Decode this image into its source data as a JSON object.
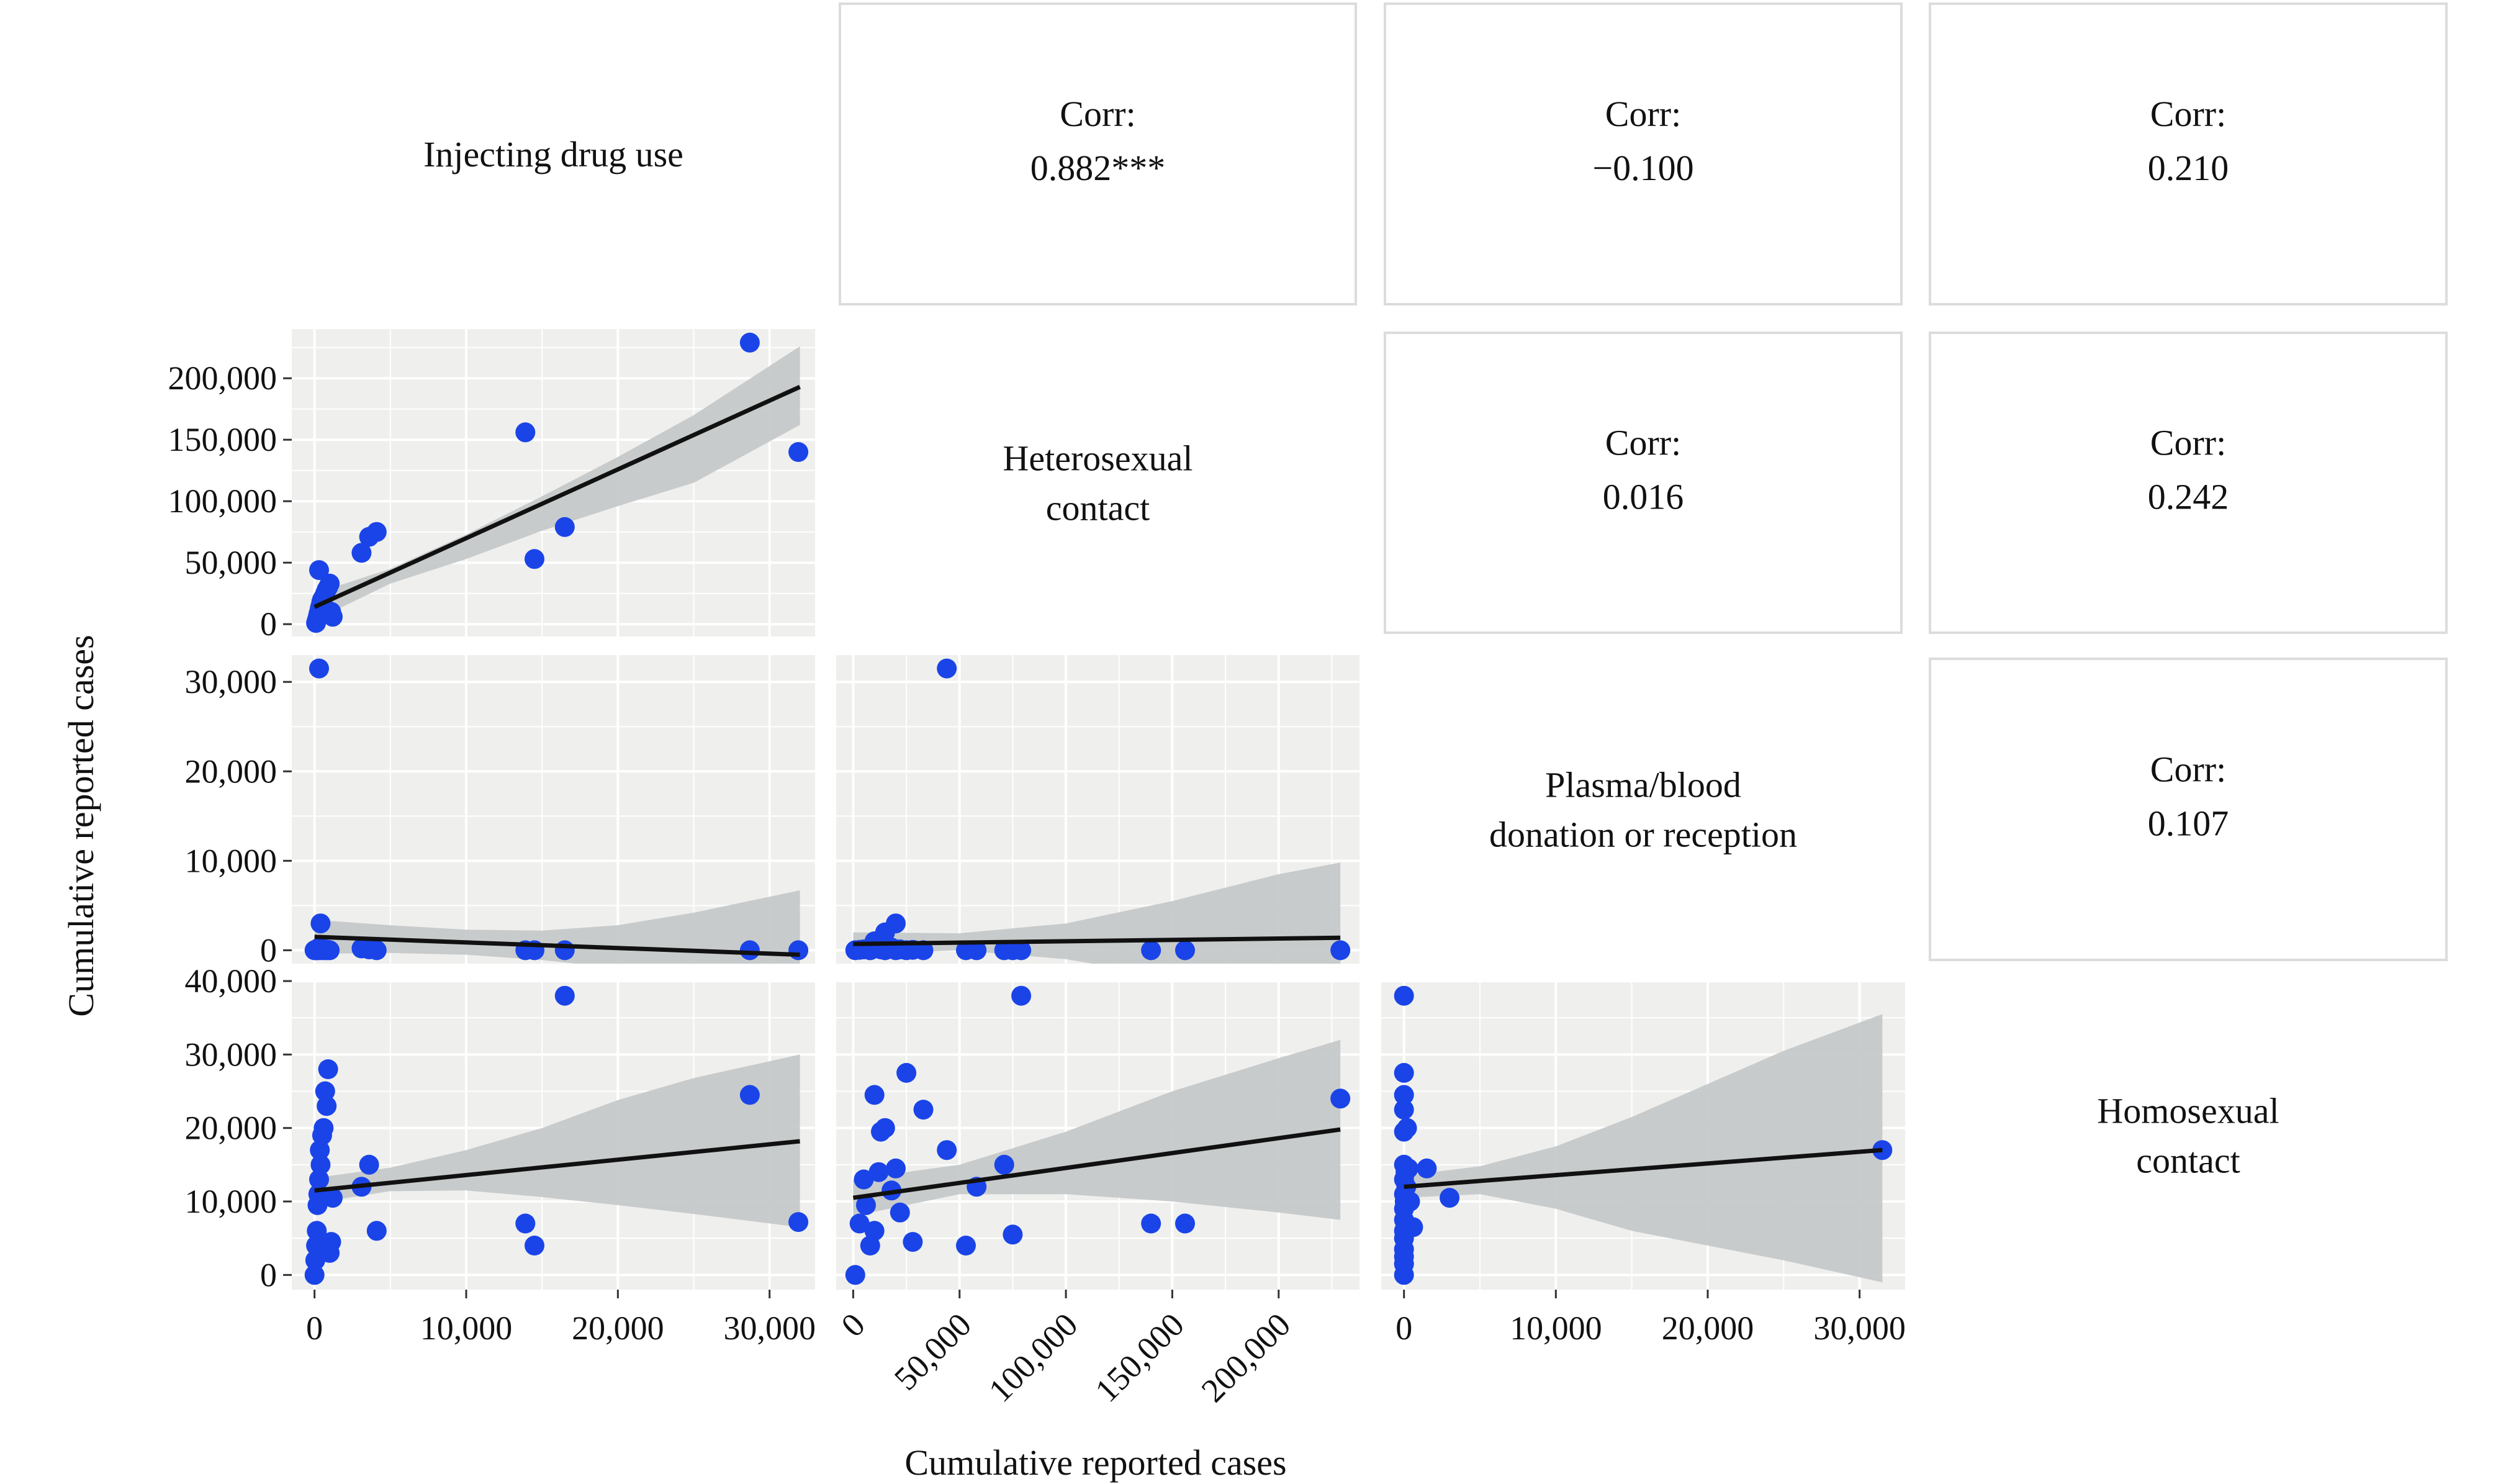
{
  "figure": {
    "xlabel": "Cumulative reported cases",
    "ylabel": "Cumulative reported cases"
  },
  "variables": [
    [
      "Injecting drug use"
    ],
    [
      "Heterosexual",
      "contact"
    ],
    [
      "Plasma/blood",
      "donation or reception"
    ],
    [
      "Homosexual",
      "contact"
    ]
  ],
  "correlations": [
    {
      "row": 0,
      "col": 1,
      "label": "Corr:",
      "value": "0.882***"
    },
    {
      "row": 0,
      "col": 2,
      "label": "Corr:",
      "value": "−0.100"
    },
    {
      "row": 0,
      "col": 3,
      "label": "Corr:",
      "value": "0.210"
    },
    {
      "row": 1,
      "col": 2,
      "label": "Corr:",
      "value": "0.016"
    },
    {
      "row": 1,
      "col": 3,
      "label": "Corr:",
      "value": "0.242"
    },
    {
      "row": 2,
      "col": 3,
      "label": "Corr:",
      "value": "0.107"
    }
  ],
  "x_axes": [
    {
      "col": 0,
      "ticks": [
        0,
        10000,
        20000,
        30000
      ],
      "labels": [
        "0",
        "10,000",
        "20,000",
        "30,000"
      ],
      "rotate": false
    },
    {
      "col": 1,
      "ticks": [
        0,
        50000,
        100000,
        150000,
        200000
      ],
      "labels": [
        "0",
        "50,000",
        "100,000",
        "150,000",
        "200,000"
      ],
      "rotate": true
    },
    {
      "col": 2,
      "ticks": [
        0,
        10000,
        20000,
        30000
      ],
      "labels": [
        "0",
        "10,000",
        "20,000",
        "30,000"
      ],
      "rotate": false
    }
  ],
  "y_axes": [
    {
      "row": 1,
      "ticks": [
        0,
        50000,
        100000,
        150000,
        200000
      ],
      "labels": [
        "0",
        "50,000",
        "100,000",
        "150,000",
        "200,000"
      ]
    },
    {
      "row": 2,
      "ticks": [
        0,
        10000,
        20000,
        30000
      ],
      "labels": [
        "0",
        "10,000",
        "20,000",
        "30,000"
      ]
    },
    {
      "row": 3,
      "ticks": [
        0,
        10000,
        20000,
        30000,
        40000
      ],
      "labels": [
        "0",
        "10,000",
        "20,000",
        "30,000",
        "40,000"
      ]
    }
  ],
  "colors": {
    "points": "#1a44e8",
    "fit_line": "#111111",
    "confidence_band": "#c3c6c6",
    "panel_background": "#efefed",
    "grid": "#ffffff",
    "corr_border": "#dcdcdc"
  },
  "chart_data": [
    {
      "type": "scatter",
      "row": 1,
      "col": 0,
      "xlim": [
        -1500,
        33000
      ],
      "ylim": [
        -10000,
        240000
      ],
      "x": [
        100,
        150,
        200,
        250,
        300,
        350,
        400,
        450,
        500,
        600,
        700,
        800,
        900,
        1000,
        1100,
        1200,
        300,
        3100,
        3600,
        4100,
        13900,
        14500,
        16500,
        28700,
        31900
      ],
      "y": [
        1000,
        3000,
        5000,
        8000,
        10000,
        13000,
        15000,
        18000,
        20000,
        22000,
        25000,
        28000,
        30000,
        33000,
        10000,
        6000,
        44000,
        58000,
        71000,
        75000,
        156000,
        53000,
        79000,
        229000,
        140000
      ],
      "fit": {
        "x": [
          0,
          32000
        ],
        "y": [
          14000,
          193000
        ]
      },
      "band": {
        "x": [
          0,
          5000,
          10000,
          15000,
          20000,
          25000,
          32000
        ],
        "lower": [
          3000,
          33000,
          53000,
          76000,
          96000,
          115000,
          162000
        ],
        "upper": [
          25000,
          45000,
          73000,
          104000,
          136000,
          170000,
          226000
        ]
      }
    },
    {
      "type": "scatter",
      "row": 2,
      "col": 0,
      "xlim": [
        -1500,
        33000
      ],
      "ylim": [
        -1500,
        33000
      ],
      "x": [
        0,
        50,
        100,
        150,
        200,
        250,
        300,
        350,
        400,
        500,
        600,
        700,
        800,
        900,
        1000,
        300,
        400,
        3100,
        3600,
        4100,
        13900,
        14500,
        16500,
        28700,
        31900
      ],
      "y": [
        0,
        50,
        0,
        100,
        0,
        200,
        300,
        0,
        100,
        50,
        0,
        100,
        0,
        50,
        0,
        31500,
        3000,
        200,
        100,
        0,
        0,
        0,
        0,
        0,
        0
      ],
      "fit": {
        "x": [
          0,
          32000
        ],
        "y": [
          1500,
          -500
        ]
      },
      "band": {
        "x": [
          0,
          5000,
          10000,
          15000,
          20000,
          25000,
          32000
        ],
        "lower": [
          -400,
          -300,
          -500,
          -1100,
          -2000,
          -3000,
          -4700
        ],
        "upper": [
          3400,
          2800,
          2300,
          2200,
          2800,
          4200,
          6700
        ]
      }
    },
    {
      "type": "scatter",
      "row": 2,
      "col": 1,
      "xlim": [
        -8000,
        238000
      ],
      "ylim": [
        -1500,
        33000
      ],
      "x": [
        1000,
        3000,
        5000,
        8000,
        10000,
        13000,
        15000,
        18000,
        20000,
        22000,
        25000,
        28000,
        33000,
        44000,
        53000,
        58000,
        71000,
        75000,
        79000,
        140000,
        156000,
        229000,
        20000,
        15000,
        10000
      ],
      "y": [
        0,
        50,
        100,
        0,
        200,
        100,
        0,
        300,
        0,
        100,
        0,
        50,
        0,
        31500,
        0,
        0,
        0,
        0,
        0,
        0,
        0,
        0,
        3000,
        2000,
        1000
      ],
      "fit": {
        "x": [
          0,
          229000
        ],
        "y": [
          700,
          1400
        ]
      },
      "band": {
        "x": [
          0,
          50000,
          100000,
          150000,
          200000,
          229000
        ],
        "lower": [
          -500,
          0,
          -1000,
          -3000,
          -5500,
          -6500
        ],
        "upper": [
          2000,
          1900,
          3000,
          5500,
          8500,
          9800
        ]
      }
    },
    {
      "type": "scatter",
      "row": 3,
      "col": 0,
      "xlim": [
        -1500,
        33000
      ],
      "ylim": [
        -2000,
        40000
      ],
      "x": [
        0,
        50,
        100,
        150,
        200,
        250,
        300,
        350,
        400,
        500,
        600,
        700,
        800,
        900,
        1000,
        1100,
        1200,
        3100,
        3600,
        4100,
        13900,
        14500,
        16500,
        28700,
        31900
      ],
      "y": [
        0,
        2000,
        4000,
        6000,
        9500,
        11000,
        13000,
        17000,
        15000,
        19000,
        20000,
        25000,
        23000,
        28000,
        3000,
        4500,
        10500,
        12000,
        15000,
        6000,
        7000,
        4000,
        38000,
        24500,
        7200
      ],
      "fit": {
        "x": [
          0,
          32000
        ],
        "y": [
          11500,
          18200
        ]
      },
      "band": {
        "x": [
          0,
          5000,
          10000,
          15000,
          20000,
          25000,
          32000
        ],
        "lower": [
          9800,
          11400,
          11500,
          10600,
          9500,
          8300,
          6500
        ],
        "upper": [
          13200,
          14600,
          17000,
          20000,
          23800,
          26800,
          30000
        ]
      }
    },
    {
      "type": "scatter",
      "row": 3,
      "col": 1,
      "xlim": [
        -8000,
        238000
      ],
      "ylim": [
        -2000,
        40000
      ],
      "x": [
        1000,
        3000,
        5000,
        6000,
        8000,
        10000,
        13000,
        15000,
        18000,
        20000,
        22000,
        25000,
        28000,
        33000,
        44000,
        53000,
        58000,
        71000,
        75000,
        79000,
        140000,
        156000,
        229000,
        10000,
        12000
      ],
      "y": [
        0,
        7000,
        13000,
        9500,
        4000,
        24500,
        19500,
        20000,
        11500,
        14500,
        8500,
        27500,
        4500,
        22500,
        17000,
        4000,
        12000,
        15000,
        5500,
        38000,
        7000,
        7000,
        24000,
        6000,
        14000
      ],
      "fit": {
        "x": [
          0,
          229000
        ],
        "y": [
          10500,
          19800
        ]
      },
      "band": {
        "x": [
          0,
          50000,
          100000,
          150000,
          200000,
          229000
        ],
        "lower": [
          8000,
          11000,
          11000,
          10000,
          8500,
          7500
        ],
        "upper": [
          13000,
          15000,
          19500,
          25000,
          29500,
          32000
        ]
      }
    },
    {
      "type": "scatter",
      "row": 3,
      "col": 2,
      "xlim": [
        -1500,
        33000
      ],
      "ylim": [
        -2000,
        40000
      ],
      "x": [
        0,
        0,
        0,
        0,
        0,
        0,
        0,
        0,
        0,
        0,
        0,
        0,
        0,
        0,
        0,
        0,
        50,
        100,
        150,
        200,
        300,
        400,
        600,
        1500,
        3000,
        31500
      ],
      "y": [
        0,
        1500,
        2500,
        3500,
        5000,
        6000,
        7500,
        9000,
        11000,
        13000,
        15000,
        19500,
        22500,
        24500,
        27500,
        38000,
        10000,
        14000,
        12000,
        20000,
        14500,
        10000,
        6500,
        14500,
        10500,
        17000
      ],
      "fit": {
        "x": [
          0,
          31500
        ],
        "y": [
          12000,
          17000
        ]
      },
      "band": {
        "x": [
          0,
          5000,
          10000,
          15000,
          20000,
          25000,
          31500
        ],
        "lower": [
          10500,
          11000,
          9000,
          6000,
          4000,
          2000,
          -1000
        ],
        "upper": [
          13500,
          14800,
          17500,
          21500,
          26000,
          30500,
          35500
        ]
      }
    }
  ]
}
